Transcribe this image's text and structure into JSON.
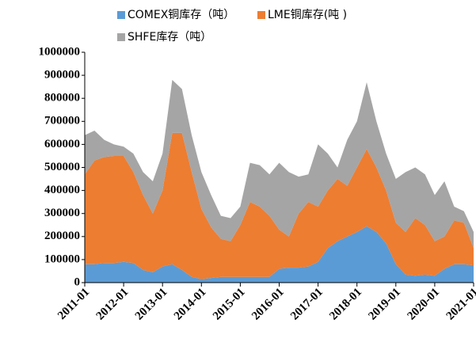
{
  "chart_data": {
    "type": "area",
    "stacked": true,
    "categories": [
      "2011-01",
      null,
      null,
      null,
      "2012-01",
      null,
      null,
      null,
      "2013-01",
      null,
      null,
      null,
      "2014-01",
      null,
      null,
      null,
      "2015-01",
      null,
      null,
      null,
      "2016-01",
      null,
      null,
      null,
      "2017-01",
      null,
      null,
      null,
      "2018-01",
      null,
      null,
      null,
      "2019-01",
      null,
      null,
      null,
      "2020-01",
      null,
      null,
      null,
      "2021-01"
    ],
    "series": [
      {
        "name": "COMEX铜库存（吨）",
        "color": "#5b9bd5",
        "values": [
          80000,
          80000,
          85000,
          85000,
          90000,
          85000,
          55000,
          45000,
          70000,
          80000,
          55000,
          25000,
          15000,
          20000,
          25000,
          25000,
          25000,
          25000,
          25000,
          25000,
          60000,
          65000,
          65000,
          70000,
          90000,
          150000,
          180000,
          200000,
          220000,
          245000,
          220000,
          170000,
          80000,
          35000,
          30000,
          35000,
          30000,
          60000,
          80000,
          80000,
          75000
        ]
      },
      {
        "name": "LME铜库存(吨 )",
        "color": "#ed7d31",
        "values": [
          390000,
          450000,
          460000,
          465000,
          460000,
          395000,
          325000,
          255000,
          330000,
          570000,
          595000,
          455000,
          305000,
          220000,
          165000,
          155000,
          225000,
          325000,
          305000,
          265000,
          170000,
          135000,
          235000,
          280000,
          240000,
          250000,
          270000,
          220000,
          280000,
          335000,
          280000,
          230000,
          180000,
          185000,
          250000,
          215000,
          150000,
          140000,
          190000,
          180000,
          75000
        ]
      },
      {
        "name": "SHFE库存（吨）",
        "color": "#a5a5a5",
        "values": [
          170000,
          130000,
          75000,
          50000,
          40000,
          80000,
          100000,
          140000,
          160000,
          230000,
          190000,
          160000,
          160000,
          140000,
          100000,
          100000,
          80000,
          170000,
          180000,
          180000,
          290000,
          280000,
          160000,
          120000,
          270000,
          160000,
          50000,
          200000,
          200000,
          290000,
          200000,
          160000,
          190000,
          260000,
          220000,
          220000,
          200000,
          240000,
          60000,
          50000,
          70000
        ]
      }
    ],
    "ylim": [
      0,
      1000000
    ],
    "yticks": [
      0,
      100000,
      200000,
      300000,
      400000,
      500000,
      600000,
      700000,
      800000,
      900000,
      1000000
    ],
    "legend": "top"
  }
}
